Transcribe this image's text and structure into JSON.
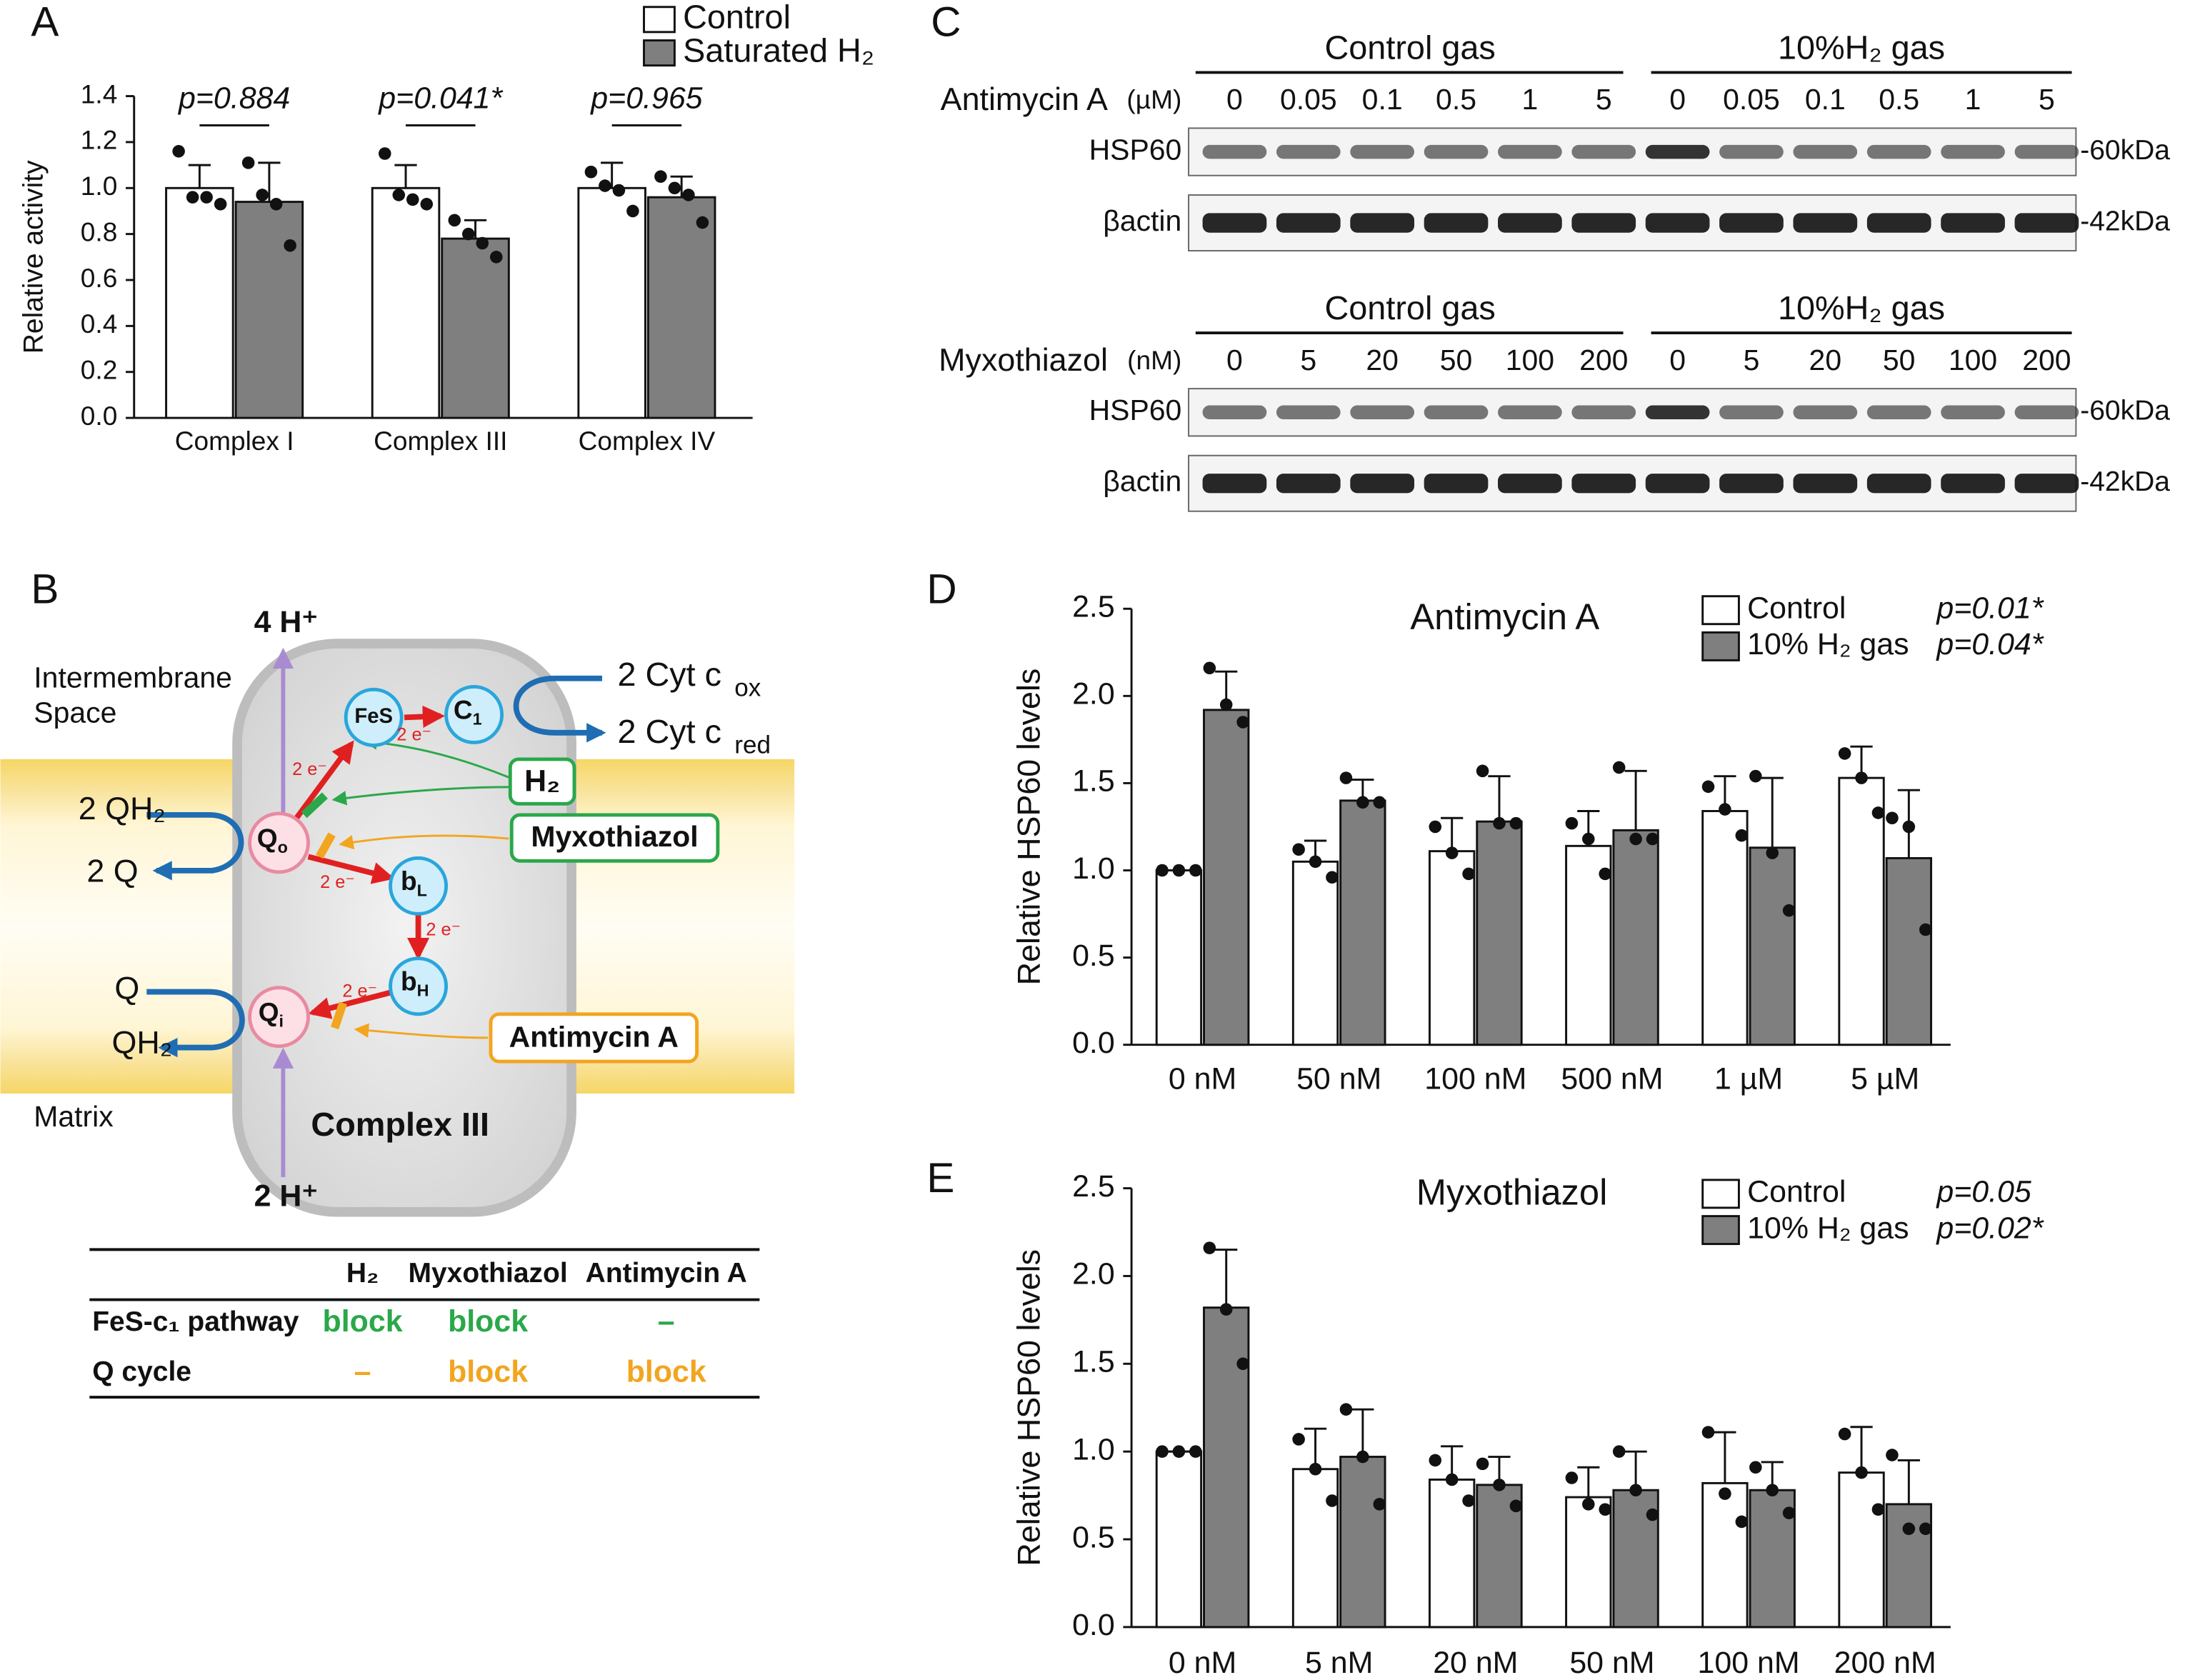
{
  "chart_data": [
    {
      "type": "bar",
      "panel": "A",
      "ylabel": "Relative activity",
      "categories": [
        "Complex I",
        "Complex III",
        "Complex IV"
      ],
      "p_values": [
        "p=0.884",
        "p=0.041*",
        "p=0.965"
      ],
      "series": [
        {
          "name": "Control",
          "color": "#ffffff",
          "values": [
            1.0,
            1.0,
            1.0
          ],
          "errors": [
            0.1,
            0.1,
            0.11
          ],
          "points": [
            [
              1.16,
              0.96,
              0.96,
              0.93
            ],
            [
              1.15,
              0.97,
              0.95,
              0.93
            ],
            [
              1.07,
              1.01,
              0.99,
              0.9
            ]
          ]
        },
        {
          "name": "Saturated H₂",
          "color": "#7f7f7f",
          "values": [
            0.94,
            0.78,
            0.96
          ],
          "errors": [
            0.17,
            0.08,
            0.09
          ],
          "points": [
            [
              1.11,
              0.97,
              0.93,
              0.75
            ],
            [
              0.86,
              0.8,
              0.76,
              0.7
            ],
            [
              1.05,
              1.0,
              0.97,
              0.85
            ]
          ]
        }
      ],
      "ylim": [
        0,
        1.4
      ],
      "yticks": [
        {
          "value": 0,
          "label": "0.0"
        },
        0.2,
        0.4,
        0.6,
        0.8,
        {
          "value": 1,
          "label": "1.0"
        },
        1.2,
        1.4
      ]
    },
    {
      "type": "bar",
      "panel": "D",
      "title": "Antimycin A",
      "ylabel": "Relative HSP60 levels",
      "categories": [
        "0 nM",
        "50 nM",
        "100 nM",
        "500 nM",
        "1 µM",
        "5 µM"
      ],
      "legend_notes": [
        "p=0.01*",
        "p=0.04*"
      ],
      "series": [
        {
          "name": "Control",
          "color": "#ffffff",
          "values": [
            1.0,
            1.05,
            1.11,
            1.14,
            1.34,
            1.53
          ],
          "errors": [
            0,
            0.12,
            0.19,
            0.2,
            0.2,
            0.18
          ],
          "points": [
            [
              1.0,
              1.0,
              1.0
            ],
            [
              1.12,
              1.05,
              0.96
            ],
            [
              1.25,
              1.1,
              0.98
            ],
            [
              1.27,
              1.18,
              0.98
            ],
            [
              1.48,
              1.35,
              1.2
            ],
            [
              1.67,
              1.53,
              1.33
            ]
          ]
        },
        {
          "name": "10% H₂ gas",
          "color": "#7f7f7f",
          "values": [
            1.92,
            1.4,
            1.28,
            1.23,
            1.13,
            1.07
          ],
          "errors": [
            0.22,
            0.12,
            0.26,
            0.34,
            0.4,
            0.39
          ],
          "points": [
            [
              2.16,
              1.95,
              1.85
            ],
            [
              1.53,
              1.39,
              1.39
            ],
            [
              1.57,
              1.27,
              1.27
            ],
            [
              1.59,
              1.18,
              1.18
            ],
            [
              1.54,
              1.1,
              0.77
            ],
            [
              1.3,
              1.25,
              0.66
            ]
          ]
        }
      ],
      "ylim": [
        0,
        2.5
      ],
      "yticks": [
        {
          "value": 0,
          "label": "0.0"
        },
        0.5,
        {
          "value": 1,
          "label": "1.0"
        },
        1.5,
        {
          "value": 2,
          "label": "2.0"
        },
        2.5
      ]
    },
    {
      "type": "bar",
      "panel": "E",
      "title": "Myxothiazol",
      "ylabel": "Relative HSP60 levels",
      "categories": [
        "0 nM",
        "5 nM",
        "20 nM",
        "50 nM",
        "100 nM",
        "200 nM"
      ],
      "legend_notes": [
        "p=0.05",
        "p=0.02*"
      ],
      "series": [
        {
          "name": "Control",
          "color": "#ffffff",
          "values": [
            1.0,
            0.9,
            0.84,
            0.74,
            0.82,
            0.88
          ],
          "errors": [
            0,
            0.23,
            0.19,
            0.17,
            0.29,
            0.26
          ],
          "points": [
            [
              1.0,
              1.0,
              1.0
            ],
            [
              1.07,
              0.9,
              0.72
            ],
            [
              0.95,
              0.84,
              0.72
            ],
            [
              0.85,
              0.7,
              0.67
            ],
            [
              1.11,
              0.76,
              0.6
            ],
            [
              1.1,
              0.88,
              0.67
            ]
          ]
        },
        {
          "name": "10% H₂ gas",
          "color": "#7f7f7f",
          "values": [
            1.82,
            0.97,
            0.81,
            0.78,
            0.78,
            0.7
          ],
          "errors": [
            0.33,
            0.27,
            0.16,
            0.22,
            0.16,
            0.25
          ],
          "points": [
            [
              2.16,
              1.81,
              1.5
            ],
            [
              1.24,
              0.97,
              0.7
            ],
            [
              0.93,
              0.81,
              0.69
            ],
            [
              1.0,
              0.78,
              0.64
            ],
            [
              0.91,
              0.78,
              0.65
            ],
            [
              0.98,
              0.56,
              0.56
            ]
          ]
        }
      ],
      "ylim": [
        0,
        2.5
      ],
      "yticks": [
        {
          "value": 0,
          "label": "0.0"
        },
        0.5,
        {
          "value": 1,
          "label": "1.0"
        },
        1.5,
        {
          "value": 2,
          "label": "2.0"
        },
        2.5
      ]
    }
  ],
  "diagram": {
    "panel": "B",
    "intermembrane": [
      "Intermembrane",
      "Space"
    ],
    "matrix": "Matrix",
    "protons_out": "4 H⁺",
    "protons_in": "2 H⁺",
    "qh2_in": "2 QH₂",
    "q_out": "2 Q",
    "q_in": "Q",
    "qh2_out": "QH₂",
    "cyt_ox": [
      "2 Cyt c",
      "ox"
    ],
    "cyt_red": [
      "2 Cyt c",
      "red"
    ],
    "nodes": {
      "fes": [
        "FeS"
      ],
      "c1": [
        "C",
        "1"
      ],
      "qo": [
        "Q",
        "o"
      ],
      "bl": [
        "b",
        "L"
      ],
      "bh": [
        "b",
        "H"
      ],
      "qi": [
        "Q",
        "i"
      ]
    },
    "electrons": [
      "2 e⁻",
      "2 e⁻",
      "2 e⁻",
      "2 e⁻",
      "2 e⁻"
    ],
    "inhibitors": [
      "H₂",
      "Myxothiazol",
      "Antimycin A"
    ],
    "complex": "Complex III",
    "table": {
      "columns": [
        "H₂",
        "Myxothiazol",
        "Antimycin A"
      ],
      "rows": [
        {
          "label": "FeS-c₁ pathway",
          "cells": [
            "block",
            "block",
            "–"
          ]
        },
        {
          "label": "Q cycle",
          "cells": [
            "–",
            "block",
            "block"
          ]
        }
      ]
    }
  },
  "blots": {
    "panel": "C",
    "sets": [
      {
        "groups": [
          "Control gas",
          "10%H₂ gas"
        ],
        "treatment": [
          "Antimycin A",
          "(µM)"
        ],
        "doses": [
          "0",
          "0.05",
          "0.1",
          "0.5",
          "1",
          "5",
          "0",
          "0.05",
          "0.1",
          "0.5",
          "1",
          "5"
        ],
        "rows": [
          "HSP60",
          "βactin"
        ],
        "sizes": [
          "-60kDa",
          "-42kDa"
        ]
      },
      {
        "groups": [
          "Control gas",
          "10%H₂ gas"
        ],
        "treatment": [
          "Myxothiazol",
          "(nM)"
        ],
        "doses": [
          "0",
          "5",
          "20",
          "50",
          "100",
          "200",
          "0",
          "5",
          "20",
          "50",
          "100",
          "200"
        ],
        "rows": [
          "HSP60",
          "βactin"
        ],
        "sizes": [
          "-60kDa",
          "-42kDa"
        ]
      }
    ]
  }
}
